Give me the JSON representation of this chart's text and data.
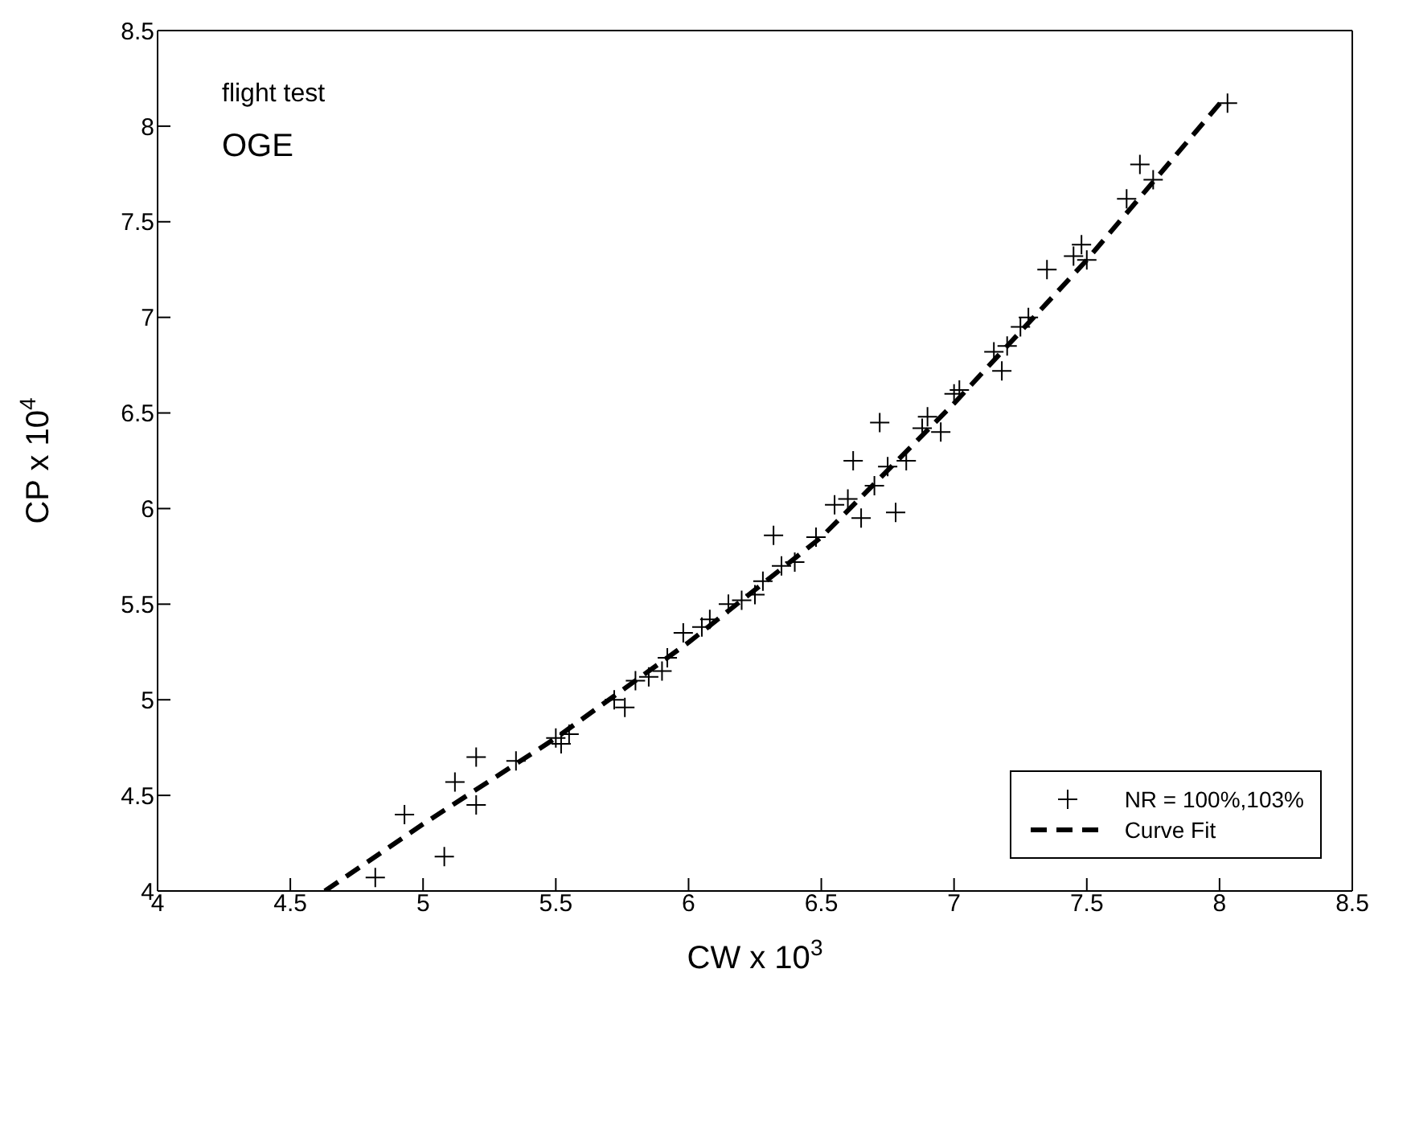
{
  "chart_data": {
    "type": "scatter",
    "xlabel": "CW x 10$^{3}$",
    "ylabel": "CP x 10$^{4}$",
    "annotations": [
      "flight test",
      "OGE"
    ],
    "xlim": [
      4,
      8.5
    ],
    "xticks": [
      4,
      4.5,
      5,
      5.5,
      6,
      6.5,
      7,
      7.5,
      8,
      8.5
    ],
    "ylim": [
      4,
      8.5
    ],
    "yticks": [
      4,
      4.5,
      5,
      5.5,
      6,
      6.5,
      7,
      7.5,
      8,
      8.5
    ],
    "grid": false,
    "legend": "bottom right",
    "marker": "cross",
    "series": [
      {
        "name": "NR = 100%,103%",
        "color": "#000000",
        "x": [
          4.82,
          4.93,
          5.08,
          5.12,
          5.2,
          5.2,
          5.35,
          5.5,
          5.52,
          5.55,
          5.72,
          5.76,
          5.8,
          5.85,
          5.9,
          5.92,
          5.98,
          6.05,
          6.08,
          6.15,
          6.2,
          6.25,
          6.28,
          6.32,
          6.35,
          6.4,
          6.48,
          6.55,
          6.6,
          6.62,
          6.65,
          6.7,
          6.72,
          6.75,
          6.78,
          6.82,
          6.88,
          6.9,
          6.95,
          7.0,
          7.02,
          7.15,
          7.18,
          7.2,
          7.25,
          7.28,
          7.35,
          7.45,
          7.48,
          7.5,
          7.65,
          7.7,
          7.75,
          8.03
        ],
        "values": [
          4.07,
          4.4,
          4.18,
          4.57,
          4.7,
          4.45,
          4.68,
          4.8,
          4.77,
          4.82,
          5.0,
          4.96,
          5.1,
          5.12,
          5.15,
          5.22,
          5.35,
          5.38,
          5.42,
          5.5,
          5.52,
          5.55,
          5.62,
          5.86,
          5.7,
          5.72,
          5.85,
          6.02,
          6.05,
          6.25,
          5.95,
          6.12,
          6.45,
          6.22,
          5.98,
          6.25,
          6.42,
          6.48,
          6.4,
          6.6,
          6.62,
          6.82,
          6.72,
          6.85,
          6.95,
          7.0,
          7.25,
          7.32,
          7.38,
          7.3,
          7.62,
          7.8,
          7.72,
          8.12
        ]
      },
      {
        "name": "Curve Fit",
        "type": "line",
        "color": "#000000",
        "line_style": "dashed",
        "marker": "none",
        "x": [
          4.63,
          5,
          5.5,
          6,
          6.5,
          7,
          7.5,
          8.02
        ],
        "values": [
          4,
          4.35,
          4.8,
          5.3,
          5.85,
          6.55,
          7.3,
          8.15
        ]
      }
    ]
  }
}
